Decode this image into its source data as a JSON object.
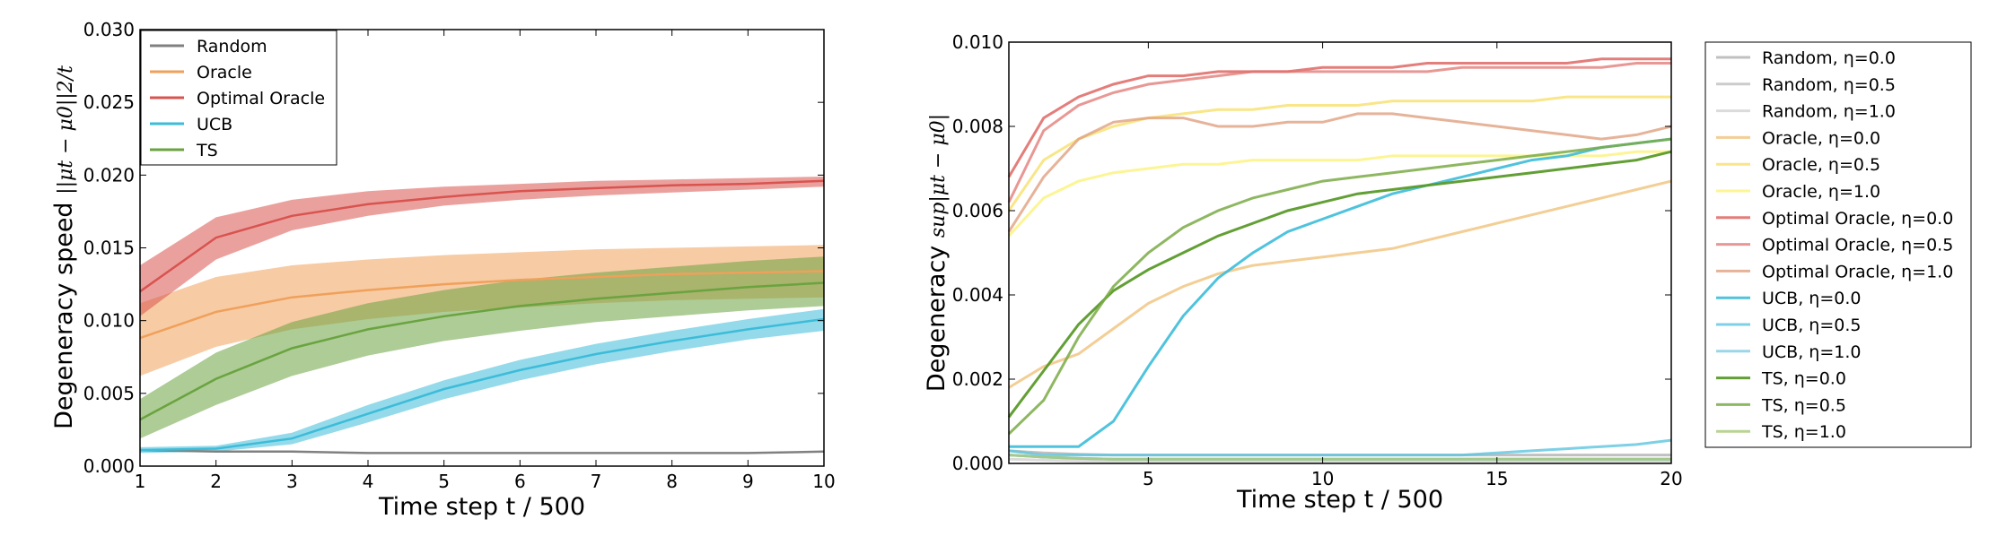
{
  "chart_data": [
    {
      "type": "line",
      "xlabel": "Time step t / 500",
      "ylabel_prefix": "Degeneracy speed ",
      "ylabel_math": "||μt − μ0||2/t",
      "xlim": [
        1,
        10
      ],
      "ylim": [
        0,
        0.03
      ],
      "xticks": [
        "1",
        "2",
        "3",
        "4",
        "5",
        "6",
        "7",
        "8",
        "9",
        "10"
      ],
      "yticks": [
        "0.000",
        "0.005",
        "0.010",
        "0.015",
        "0.020",
        "0.025",
        "0.030"
      ],
      "legend_position": "top-left",
      "x": [
        1,
        2,
        3,
        4,
        5,
        6,
        7,
        8,
        9,
        10
      ],
      "series": [
        {
          "name": "Random",
          "color": "#808080",
          "values": [
            0.0011,
            0.001,
            0.001,
            0.0009,
            0.0009,
            0.0009,
            0.0009,
            0.0009,
            0.0009,
            0.001
          ],
          "lower": [
            0.0011,
            0.001,
            0.001,
            0.0009,
            0.0009,
            0.0009,
            0.0009,
            0.0009,
            0.0009,
            0.001
          ],
          "upper": [
            0.0011,
            0.001,
            0.001,
            0.0009,
            0.0009,
            0.0009,
            0.0009,
            0.0009,
            0.0009,
            0.001
          ]
        },
        {
          "name": "Oracle",
          "color": "#f0a05a",
          "values": [
            0.0088,
            0.0106,
            0.0116,
            0.0121,
            0.0125,
            0.0128,
            0.013,
            0.0132,
            0.0133,
            0.0134
          ],
          "lower": [
            0.0062,
            0.0082,
            0.0094,
            0.0101,
            0.0106,
            0.0109,
            0.0112,
            0.0114,
            0.0115,
            0.0116
          ],
          "upper": [
            0.0112,
            0.013,
            0.0138,
            0.0142,
            0.0145,
            0.0147,
            0.0149,
            0.015,
            0.0151,
            0.0152
          ]
        },
        {
          "name": "Optimal Oracle",
          "color": "#d9534f",
          "values": [
            0.012,
            0.0157,
            0.0172,
            0.018,
            0.0185,
            0.0189,
            0.0191,
            0.0193,
            0.0194,
            0.0196
          ],
          "lower": [
            0.0103,
            0.0142,
            0.0162,
            0.0172,
            0.0179,
            0.0183,
            0.0186,
            0.0188,
            0.019,
            0.0192
          ],
          "upper": [
            0.0138,
            0.0171,
            0.0183,
            0.0189,
            0.0192,
            0.0194,
            0.0196,
            0.0197,
            0.0198,
            0.0199
          ]
        },
        {
          "name": "UCB",
          "color": "#3cbcd9",
          "values": [
            0.0011,
            0.0012,
            0.0019,
            0.0036,
            0.0053,
            0.0066,
            0.0077,
            0.0086,
            0.0094,
            0.0101
          ],
          "lower": [
            0.0009,
            0.001,
            0.0015,
            0.003,
            0.0046,
            0.0059,
            0.007,
            0.0079,
            0.0087,
            0.0093
          ],
          "upper": [
            0.0013,
            0.0014,
            0.0023,
            0.0042,
            0.0059,
            0.0073,
            0.0084,
            0.0093,
            0.0101,
            0.0108
          ]
        },
        {
          "name": "TS",
          "color": "#6aa33f",
          "values": [
            0.0032,
            0.006,
            0.0081,
            0.0094,
            0.0103,
            0.011,
            0.0115,
            0.0119,
            0.0123,
            0.0126
          ],
          "lower": [
            0.0019,
            0.0042,
            0.0062,
            0.0076,
            0.0086,
            0.0093,
            0.0099,
            0.0103,
            0.0107,
            0.011
          ],
          "upper": [
            0.0046,
            0.0078,
            0.0099,
            0.0112,
            0.0121,
            0.0128,
            0.0133,
            0.0137,
            0.0141,
            0.0144
          ]
        }
      ]
    },
    {
      "type": "line",
      "xlabel": "Time step t / 500",
      "ylabel_prefix": "Degeneracy ",
      "ylabel_math": "sup|μt − μ0|",
      "xlim": [
        1,
        20
      ],
      "ylim": [
        0,
        0.01
      ],
      "xticks": [
        "5",
        "10",
        "15",
        "20"
      ],
      "xtick_values": [
        5,
        10,
        15,
        20
      ],
      "yticks": [
        "0.000",
        "0.002",
        "0.004",
        "0.006",
        "0.008",
        "0.010"
      ],
      "legend_position": "outside-right",
      "x": [
        1,
        2,
        3,
        4,
        5,
        6,
        7,
        8,
        9,
        10,
        11,
        12,
        13,
        14,
        15,
        16,
        17,
        18,
        19,
        20
      ],
      "series": [
        {
          "name": "Random, η=0.0",
          "color": "#8c8c8c",
          "opacity": 0.55,
          "values": [
            0.0003,
            0.00025,
            0.00022,
            0.0002,
            0.0002,
            0.0002,
            0.0002,
            0.0002,
            0.0002,
            0.0002,
            0.0002,
            0.0002,
            0.0002,
            0.0002,
            0.0002,
            0.0002,
            0.0002,
            0.0002,
            0.0002,
            0.0002
          ]
        },
        {
          "name": "Random, η=0.5",
          "color": "#9a9a9a",
          "opacity": 0.5,
          "values": [
            0.0002,
            0.00015,
            0.00012,
            0.0001,
            0.0001,
            0.0001,
            0.0001,
            0.0001,
            0.0001,
            0.0001,
            0.0001,
            0.0001,
            0.0001,
            0.0001,
            0.0001,
            0.0001,
            0.0001,
            0.0001,
            0.0001,
            0.0001
          ]
        },
        {
          "name": "Random, η=1.0",
          "color": "#b0b0b0",
          "opacity": 0.45,
          "values": [
            0.0001,
            8e-05,
            6e-05,
            5e-05,
            5e-05,
            5e-05,
            5e-05,
            5e-05,
            5e-05,
            5e-05,
            5e-05,
            5e-05,
            5e-05,
            5e-05,
            5e-05,
            5e-05,
            5e-05,
            5e-05,
            5e-05,
            5e-05
          ]
        },
        {
          "name": "Oracle, η=0.0",
          "color": "#f0c27a",
          "opacity": 0.8,
          "values": [
            0.0018,
            0.0023,
            0.0026,
            0.0032,
            0.0038,
            0.0042,
            0.0045,
            0.0047,
            0.0048,
            0.0049,
            0.005,
            0.0051,
            0.0053,
            0.0055,
            0.0057,
            0.0059,
            0.0061,
            0.0063,
            0.0065,
            0.0067
          ]
        },
        {
          "name": "Oracle, η=0.5",
          "color": "#f8e06a",
          "opacity": 0.8,
          "values": [
            0.006,
            0.0072,
            0.0077,
            0.008,
            0.0082,
            0.0083,
            0.0084,
            0.0084,
            0.0085,
            0.0085,
            0.0085,
            0.0086,
            0.0086,
            0.0086,
            0.0086,
            0.0086,
            0.0087,
            0.0087,
            0.0087,
            0.0087
          ]
        },
        {
          "name": "Oracle, η=1.0",
          "color": "#fbf27a",
          "opacity": 0.8,
          "values": [
            0.0054,
            0.0063,
            0.0067,
            0.0069,
            0.007,
            0.0071,
            0.0071,
            0.0072,
            0.0072,
            0.0072,
            0.0072,
            0.0073,
            0.0073,
            0.0073,
            0.0073,
            0.0073,
            0.0073,
            0.0073,
            0.0074,
            0.0074
          ]
        },
        {
          "name": "Optimal Oracle, η=0.0",
          "color": "#d9534f",
          "opacity": 0.75,
          "values": [
            0.0068,
            0.0082,
            0.0087,
            0.009,
            0.0092,
            0.0092,
            0.0093,
            0.0093,
            0.0093,
            0.0094,
            0.0094,
            0.0094,
            0.0095,
            0.0095,
            0.0095,
            0.0095,
            0.0095,
            0.0096,
            0.0096,
            0.0096
          ]
        },
        {
          "name": "Optimal Oracle, η=0.5",
          "color": "#e07670",
          "opacity": 0.75,
          "values": [
            0.0062,
            0.0079,
            0.0085,
            0.0088,
            0.009,
            0.0091,
            0.0092,
            0.0093,
            0.0093,
            0.0093,
            0.0093,
            0.0093,
            0.0093,
            0.0094,
            0.0094,
            0.0094,
            0.0094,
            0.0094,
            0.0095,
            0.0095
          ]
        },
        {
          "name": "Optimal Oracle, η=1.0",
          "color": "#e0a080",
          "opacity": 0.8,
          "values": [
            0.0055,
            0.0068,
            0.0077,
            0.0081,
            0.0082,
            0.0082,
            0.008,
            0.008,
            0.0081,
            0.0081,
            0.0083,
            0.0083,
            0.0082,
            0.0081,
            0.008,
            0.0079,
            0.0078,
            0.0077,
            0.0078,
            0.008
          ]
        },
        {
          "name": "UCB, η=0.0",
          "color": "#3cbcd9",
          "opacity": 0.9,
          "values": [
            0.0004,
            0.0004,
            0.0004,
            0.001,
            0.0023,
            0.0035,
            0.0044,
            0.005,
            0.0055,
            0.0058,
            0.0061,
            0.0064,
            0.0066,
            0.0068,
            0.007,
            0.0072,
            0.0073,
            0.0075,
            0.0076,
            0.0077
          ]
        },
        {
          "name": "UCB, η=0.5",
          "color": "#5cc4e0",
          "opacity": 0.8,
          "values": [
            0.0003,
            0.0002,
            0.0002,
            0.0002,
            0.0002,
            0.0002,
            0.0002,
            0.0002,
            0.0002,
            0.0002,
            0.0002,
            0.0002,
            0.0002,
            0.0002,
            0.00025,
            0.0003,
            0.00035,
            0.0004,
            0.00045,
            0.00055
          ]
        },
        {
          "name": "UCB, η=1.0",
          "color": "#80cce4",
          "opacity": 0.8,
          "values": [
            0.0002,
            0.00015,
            0.00012,
            0.0001,
            0.0001,
            0.0001,
            0.0001,
            0.0001,
            0.0001,
            0.0001,
            0.0001,
            0.0001,
            0.0001,
            0.0001,
            0.0001,
            0.0001,
            0.0001,
            0.0001,
            0.0001,
            0.0001
          ]
        },
        {
          "name": "TS, η=0.0",
          "color": "#5a9a2a",
          "opacity": 0.95,
          "values": [
            0.0011,
            0.0022,
            0.0033,
            0.0041,
            0.0046,
            0.005,
            0.0054,
            0.0057,
            0.006,
            0.0062,
            0.0064,
            0.0065,
            0.0066,
            0.0067,
            0.0068,
            0.0069,
            0.007,
            0.0071,
            0.0072,
            0.0074
          ]
        },
        {
          "name": "TS, η=0.5",
          "color": "#7aaa45",
          "opacity": 0.85,
          "values": [
            0.0007,
            0.0015,
            0.003,
            0.0042,
            0.005,
            0.0056,
            0.006,
            0.0063,
            0.0065,
            0.0067,
            0.0068,
            0.0069,
            0.007,
            0.0071,
            0.0072,
            0.0073,
            0.0074,
            0.0075,
            0.0076,
            0.0077
          ]
        },
        {
          "name": "TS, η=1.0",
          "color": "#a8c878",
          "opacity": 0.8,
          "values": [
            0.0002,
            0.00015,
            0.00012,
            0.0001,
            0.0001,
            0.0001,
            0.0001,
            0.0001,
            0.0001,
            0.0001,
            0.0001,
            0.0001,
            0.0001,
            0.0001,
            0.0001,
            0.0001,
            0.0001,
            0.0001,
            0.0001,
            0.0001
          ]
        }
      ]
    }
  ]
}
